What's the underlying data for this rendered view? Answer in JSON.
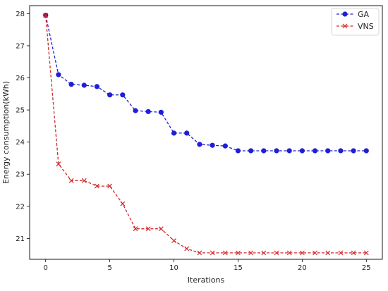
{
  "chart_data": {
    "type": "line",
    "xlabel": "Iterations",
    "ylabel": "Energy consumption(kWh)",
    "xlim": [
      -1.25,
      26.25
    ],
    "ylim": [
      20.35,
      28.25
    ],
    "xticks": [
      0,
      5,
      10,
      15,
      20,
      25
    ],
    "yticks": [
      21,
      22,
      23,
      24,
      25,
      26,
      27,
      28
    ],
    "grid": false,
    "legend_position": "top-right",
    "x": [
      0,
      1,
      2,
      3,
      4,
      5,
      6,
      7,
      8,
      9,
      10,
      11,
      12,
      13,
      14,
      15,
      16,
      17,
      18,
      19,
      20,
      21,
      22,
      23,
      24,
      25
    ],
    "series": [
      {
        "name": "GA",
        "color": "#1f1fd6",
        "marker": "circle",
        "line_style": "dashed",
        "values": [
          27.95,
          26.1,
          25.8,
          25.77,
          25.73,
          25.47,
          25.47,
          24.98,
          24.95,
          24.93,
          24.28,
          24.28,
          23.93,
          23.9,
          23.88,
          23.73,
          23.73,
          23.73,
          23.73,
          23.73,
          23.73,
          23.73,
          23.73,
          23.73,
          23.73,
          23.73
        ]
      },
      {
        "name": "VNS",
        "color": "#d62728",
        "marker": "x",
        "line_style": "dashed",
        "values": [
          27.95,
          23.32,
          22.8,
          22.8,
          22.63,
          22.63,
          22.08,
          21.3,
          21.3,
          21.3,
          20.93,
          20.68,
          20.55,
          20.55,
          20.55,
          20.55,
          20.55,
          20.55,
          20.55,
          20.55,
          20.55,
          20.55,
          20.55,
          20.55,
          20.55,
          20.55
        ]
      }
    ]
  }
}
